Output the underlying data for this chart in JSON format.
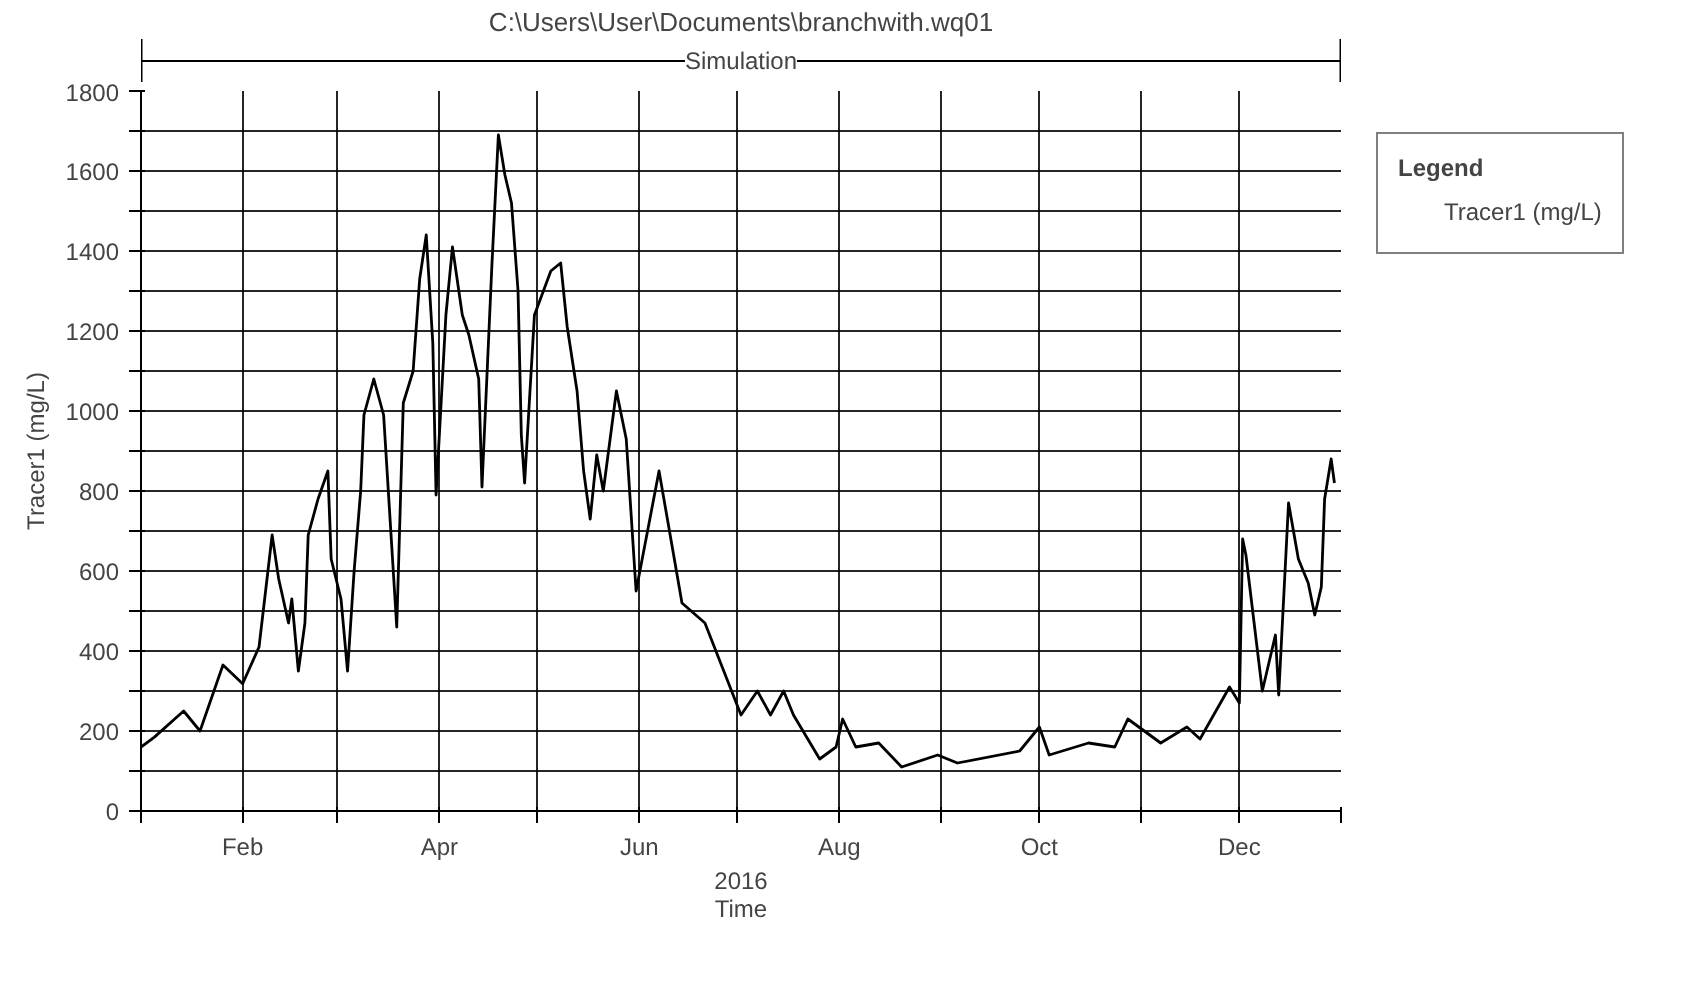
{
  "chart_data": {
    "type": "line",
    "title": "C:\\Users\\User\\Documents\\branchwith.wq01",
    "xlabel": "Time",
    "ylabel": "Tracer1 (mg/L)",
    "legend_title": "Legend",
    "annotations": [
      "Simulation",
      "2016"
    ],
    "xlim": [
      "2016-01-01",
      "2017-01-01"
    ],
    "xticks": [
      {
        "value": "2016-01-01",
        "label": null
      },
      {
        "value": "2016-02-01",
        "label": "Feb"
      },
      {
        "value": "2016-03-01",
        "label": null
      },
      {
        "value": "2016-04-01",
        "label": "Apr"
      },
      {
        "value": "2016-05-01",
        "label": null
      },
      {
        "value": "2016-06-01",
        "label": "Jun"
      },
      {
        "value": "2016-07-01",
        "label": null
      },
      {
        "value": "2016-08-01",
        "label": "Aug"
      },
      {
        "value": "2016-09-01",
        "label": null
      },
      {
        "value": "2016-10-01",
        "label": "Oct"
      },
      {
        "value": "2016-11-01",
        "label": null
      },
      {
        "value": "2016-12-01",
        "label": "Dec"
      },
      {
        "value": "2017-01-01",
        "label": null
      }
    ],
    "ylim": [
      0,
      1800
    ],
    "yticks": [
      0,
      {
        "value": 100,
        "label": null
      },
      200,
      {
        "value": 300,
        "label": null
      },
      400,
      {
        "value": 500,
        "label": null
      },
      600,
      {
        "value": 700,
        "label": null
      },
      800,
      {
        "value": 900,
        "label": null
      },
      1000,
      {
        "value": 1100,
        "label": null
      },
      1200,
      {
        "value": 1300,
        "label": null
      },
      1400,
      {
        "value": 1500,
        "label": null
      },
      1600,
      {
        "value": 1700,
        "label": null
      },
      1800
    ],
    "grid": true,
    "legend": "top right",
    "marker": "none",
    "line_style": "solid",
    "x": [
      "2016-01-01",
      "2016-01-05",
      "2016-01-14",
      "2016-01-19",
      "2016-01-26",
      "2016-02-01",
      "2016-02-06",
      "2016-02-10",
      "2016-02-12",
      "2016-02-15",
      "2016-02-16",
      "2016-02-18",
      "2016-02-20",
      "2016-02-21",
      "2016-02-24",
      "2016-02-27",
      "2016-02-28",
      "2016-03-02",
      "2016-03-04",
      "2016-03-06",
      "2016-03-08",
      "2016-03-09",
      "2016-03-12",
      "2016-03-15",
      "2016-03-19",
      "2016-03-21",
      "2016-03-24",
      "2016-03-26",
      "2016-03-28",
      "2016-03-30",
      "2016-03-31",
      "2016-04-03",
      "2016-04-05",
      "2016-04-08",
      "2016-04-10",
      "2016-04-13",
      "2016-04-14",
      "2016-04-17",
      "2016-04-19",
      "2016-04-21",
      "2016-04-23",
      "2016-04-25",
      "2016-04-26",
      "2016-04-27",
      "2016-04-30",
      "2016-05-05",
      "2016-05-08",
      "2016-05-10",
      "2016-05-13",
      "2016-05-15",
      "2016-05-17",
      "2016-05-19",
      "2016-05-21",
      "2016-05-25",
      "2016-05-28",
      "2016-05-31",
      "2016-06-07",
      "2016-06-14",
      "2016-06-21",
      "2016-07-02",
      "2016-07-07",
      "2016-07-11",
      "2016-07-15",
      "2016-07-18",
      "2016-07-26",
      "2016-07-31",
      "2016-08-02",
      "2016-08-06",
      "2016-08-13",
      "2016-08-20",
      "2016-08-31",
      "2016-09-06",
      "2016-09-25",
      "2016-10-01",
      "2016-10-04",
      "2016-10-16",
      "2016-10-24",
      "2016-10-28",
      "2016-11-07",
      "2016-11-15",
      "2016-11-19",
      "2016-11-28",
      "2016-12-01",
      "2016-12-02",
      "2016-12-03",
      "2016-12-08",
      "2016-12-12",
      "2016-12-13",
      "2016-12-16",
      "2016-12-19",
      "2016-12-22",
      "2016-12-24",
      "2016-12-26",
      "2016-12-27",
      "2016-12-29",
      "2016-12-30"
    ],
    "series": [
      {
        "name": "Tracer1 (mg/L)",
        "color": "#000000",
        "values": [
          160,
          184,
          250,
          200,
          365,
          318,
          410,
          690,
          580,
          470,
          530,
          350,
          470,
          690,
          780,
          850,
          630,
          530,
          350,
          600,
          800,
          990,
          1080,
          990,
          460,
          1020,
          1100,
          1330,
          1440,
          1170,
          790,
          1240,
          1410,
          1240,
          1190,
          1080,
          810,
          1360,
          1690,
          1590,
          1520,
          1300,
          940,
          820,
          1240,
          1350,
          1370,
          1210,
          1050,
          850,
          730,
          890,
          800,
          1050,
          930,
          550,
          850,
          520,
          470,
          240,
          300,
          240,
          300,
          240,
          130,
          160,
          230,
          160,
          170,
          110,
          140,
          120,
          150,
          210,
          140,
          170,
          160,
          230,
          170,
          210,
          180,
          310,
          270,
          680,
          640,
          300,
          440,
          290,
          770,
          630,
          570,
          490,
          560,
          780,
          880,
          820
        ]
      }
    ]
  }
}
